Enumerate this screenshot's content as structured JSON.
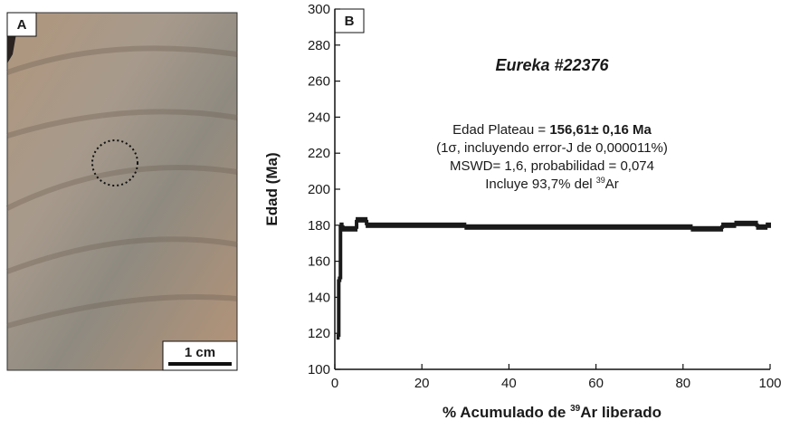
{
  "photo": {
    "label": "A",
    "scale_label": "1 cm"
  },
  "chart_data": {
    "type": "step",
    "panel_label": "B",
    "title": "Eureka  #22376",
    "y_label": "Edad (Ma)",
    "x_label": {
      "pre": "% Acumulado de ",
      "sup": "39",
      "post": "Ar liberado"
    },
    "annotation": {
      "line1_pre": "Edad Plateau = ",
      "line1_bold": "156,61± 0,16 Ma",
      "line2": "(1σ, incluyendo error-J de 0,000011%)",
      "line3": "MSWD= 1,6, probabilidad = 0,074",
      "line4_pre": "Incluye 93,7% del ",
      "line4_sup": "39",
      "line4_post": "Ar"
    },
    "x_start": [
      0.6,
      0.9,
      1.3,
      1.8,
      5.0,
      7.3,
      30,
      82,
      89,
      92,
      97,
      99.2
    ],
    "x_end": [
      0.9,
      1.3,
      1.8,
      5.0,
      7.3,
      30,
      82,
      89,
      92,
      97,
      99.2,
      100
    ],
    "values": [
      118,
      150,
      180,
      178,
      183,
      180,
      179,
      178,
      180,
      181,
      179,
      180
    ],
    "color": "#1a1a1a",
    "xlim": [
      0,
      100
    ],
    "xticks": [
      0,
      20,
      40,
      60,
      80,
      100
    ],
    "ylim": [
      100,
      300
    ],
    "yticks": [
      100,
      120,
      140,
      160,
      180,
      200,
      220,
      240,
      260,
      280,
      300
    ]
  }
}
